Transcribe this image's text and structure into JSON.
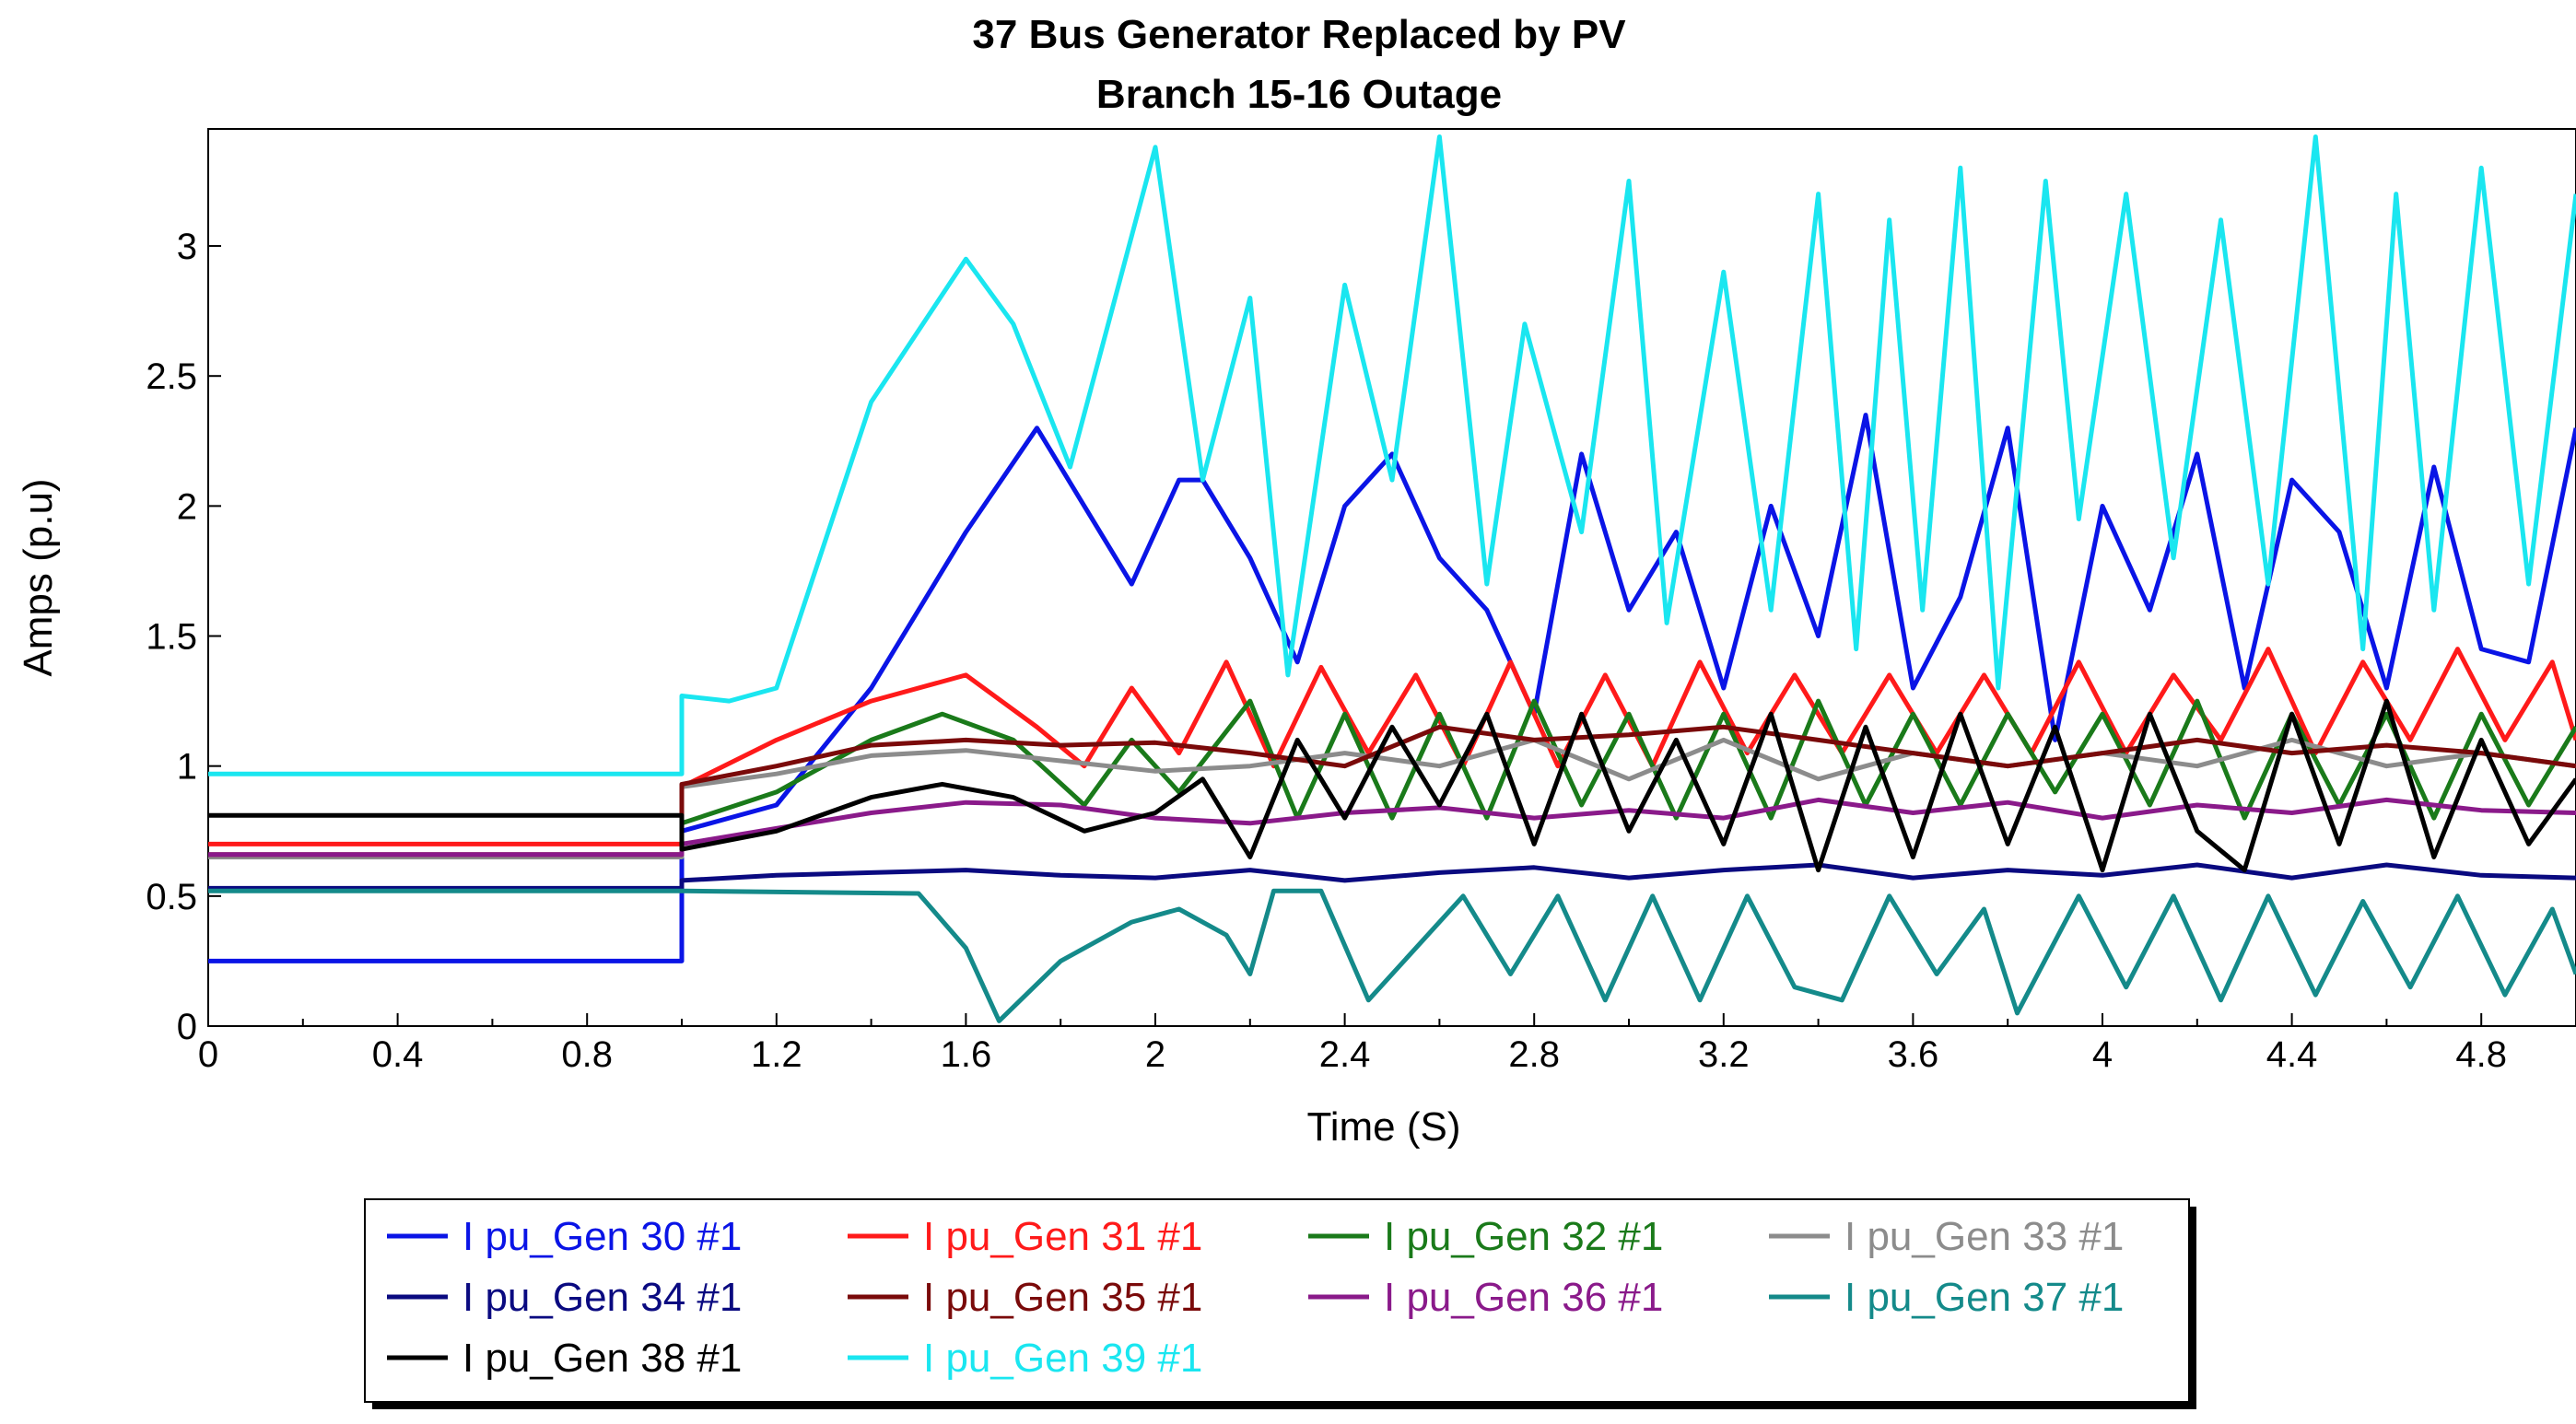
{
  "chart_data": {
    "type": "line",
    "title": "37 Bus Generator Replaced by PV",
    "subtitle": "Branch 15-16 Outage",
    "xlabel": "Time (S)",
    "ylabel": "Amps (p.u)",
    "xlim": [
      0,
      5.0
    ],
    "ylim": [
      0,
      3.45
    ],
    "xticks": [
      0,
      0.4,
      0.8,
      1.2,
      1.6,
      2,
      2.4,
      2.8,
      3.2,
      3.6,
      4,
      4.4,
      4.8
    ],
    "xtick_labels": [
      "0",
      "0.4",
      "0.8",
      "1.2",
      "1.6",
      "2",
      "2.4",
      "2.8",
      "3.2",
      "3.6",
      "4",
      "4.4",
      "4.8"
    ],
    "yticks": [
      0,
      0.5,
      1,
      1.5,
      2,
      2.5,
      3
    ],
    "ytick_labels": [
      "0",
      "0.5",
      "1",
      "1.5",
      "2",
      "2.5",
      "3"
    ],
    "grid": false,
    "legend_position": "bottom",
    "series": [
      {
        "name": "I pu_Gen 30 #1",
        "color": "#0a14e6",
        "x": [
          0,
          1.0,
          1.0,
          1.2,
          1.4,
          1.6,
          1.75,
          1.85,
          1.95,
          2.05,
          2.1,
          2.2,
          2.3,
          2.4,
          2.5,
          2.6,
          2.7,
          2.8,
          2.9,
          3.0,
          3.1,
          3.2,
          3.3,
          3.4,
          3.5,
          3.6,
          3.7,
          3.8,
          3.9,
          4.0,
          4.1,
          4.2,
          4.3,
          4.4,
          4.5,
          4.6,
          4.7,
          4.8,
          4.9,
          5.0
        ],
        "values": [
          0.25,
          0.25,
          0.75,
          0.85,
          1.3,
          1.9,
          2.3,
          2.0,
          1.7,
          2.1,
          2.1,
          1.8,
          1.4,
          2.0,
          2.2,
          1.8,
          1.6,
          1.2,
          2.2,
          1.6,
          1.9,
          1.3,
          2.0,
          1.5,
          2.35,
          1.3,
          1.65,
          2.3,
          1.1,
          2.0,
          1.6,
          2.2,
          1.3,
          2.1,
          1.9,
          1.3,
          2.15,
          1.45,
          1.4,
          2.3
        ]
      },
      {
        "name": "I pu_Gen 31 #1",
        "color": "#ff1a1a",
        "x": [
          0,
          1.0,
          1.0,
          1.2,
          1.4,
          1.6,
          1.75,
          1.85,
          1.95,
          2.05,
          2.15,
          2.25,
          2.35,
          2.45,
          2.55,
          2.65,
          2.75,
          2.85,
          2.95,
          3.05,
          3.15,
          3.25,
          3.35,
          3.45,
          3.55,
          3.65,
          3.75,
          3.85,
          3.95,
          4.05,
          4.15,
          4.25,
          4.35,
          4.45,
          4.55,
          4.65,
          4.75,
          4.85,
          4.95,
          5.0
        ],
        "values": [
          0.7,
          0.7,
          0.92,
          1.1,
          1.25,
          1.35,
          1.15,
          1.0,
          1.3,
          1.05,
          1.4,
          1.0,
          1.38,
          1.05,
          1.35,
          1.0,
          1.4,
          1.0,
          1.35,
          1.0,
          1.4,
          1.05,
          1.35,
          1.05,
          1.35,
          1.05,
          1.35,
          1.05,
          1.4,
          1.05,
          1.35,
          1.1,
          1.45,
          1.05,
          1.4,
          1.1,
          1.45,
          1.1,
          1.4,
          1.1
        ]
      },
      {
        "name": "I pu_Gen 32 #1",
        "color": "#1a7a1a",
        "x": [
          0,
          1.0,
          1.0,
          1.2,
          1.4,
          1.55,
          1.7,
          1.85,
          1.95,
          2.05,
          2.2,
          2.3,
          2.4,
          2.5,
          2.6,
          2.7,
          2.8,
          2.9,
          3.0,
          3.1,
          3.2,
          3.3,
          3.4,
          3.5,
          3.6,
          3.7,
          3.8,
          3.9,
          4.0,
          4.1,
          4.2,
          4.3,
          4.4,
          4.5,
          4.6,
          4.7,
          4.8,
          4.9,
          5.0
        ],
        "values": [
          0.65,
          0.65,
          0.78,
          0.9,
          1.1,
          1.2,
          1.1,
          0.85,
          1.1,
          0.9,
          1.25,
          0.8,
          1.2,
          0.8,
          1.2,
          0.8,
          1.25,
          0.85,
          1.2,
          0.8,
          1.2,
          0.8,
          1.25,
          0.85,
          1.2,
          0.85,
          1.2,
          0.9,
          1.2,
          0.85,
          1.25,
          0.8,
          1.2,
          0.85,
          1.2,
          0.8,
          1.2,
          0.85,
          1.15
        ]
      },
      {
        "name": "I pu_Gen 33 #1",
        "color": "#8c8c8c",
        "x": [
          0,
          1.0,
          1.0,
          1.2,
          1.4,
          1.6,
          1.8,
          2.0,
          2.2,
          2.4,
          2.6,
          2.8,
          3.0,
          3.2,
          3.4,
          3.6,
          3.8,
          4.0,
          4.2,
          4.4,
          4.6,
          4.8,
          5.0
        ],
        "values": [
          0.65,
          0.65,
          0.92,
          0.97,
          1.04,
          1.06,
          1.02,
          0.98,
          1.0,
          1.05,
          1.0,
          1.1,
          0.95,
          1.1,
          0.95,
          1.05,
          1.0,
          1.05,
          1.0,
          1.1,
          1.0,
          1.05,
          1.0
        ]
      },
      {
        "name": "I pu_Gen 34 #1",
        "color": "#0a0a80",
        "x": [
          0,
          1.0,
          1.0,
          1.2,
          1.4,
          1.6,
          1.8,
          2.0,
          2.2,
          2.4,
          2.6,
          2.8,
          3.0,
          3.2,
          3.4,
          3.6,
          3.8,
          4.0,
          4.2,
          4.4,
          4.6,
          4.8,
          5.0
        ],
        "values": [
          0.53,
          0.53,
          0.56,
          0.58,
          0.59,
          0.6,
          0.58,
          0.57,
          0.6,
          0.56,
          0.59,
          0.61,
          0.57,
          0.6,
          0.62,
          0.57,
          0.6,
          0.58,
          0.62,
          0.57,
          0.62,
          0.58,
          0.57
        ]
      },
      {
        "name": "I pu_Gen 35 #1",
        "color": "#7a0a0a",
        "x": [
          0,
          1.0,
          1.0,
          1.2,
          1.4,
          1.6,
          1.8,
          2.0,
          2.2,
          2.4,
          2.6,
          2.8,
          3.0,
          3.2,
          3.4,
          3.6,
          3.8,
          4.0,
          4.2,
          4.4,
          4.6,
          4.8,
          5.0
        ],
        "values": [
          0.66,
          0.66,
          0.93,
          1.0,
          1.08,
          1.1,
          1.08,
          1.09,
          1.05,
          1.0,
          1.15,
          1.1,
          1.12,
          1.15,
          1.1,
          1.05,
          1.0,
          1.05,
          1.1,
          1.05,
          1.08,
          1.05,
          1.0
        ]
      },
      {
        "name": "I pu_Gen 36 #1",
        "color": "#8a1a8a",
        "x": [
          0,
          1.0,
          1.0,
          1.2,
          1.4,
          1.6,
          1.8,
          2.0,
          2.2,
          2.4,
          2.6,
          2.8,
          3.0,
          3.2,
          3.4,
          3.6,
          3.8,
          4.0,
          4.2,
          4.4,
          4.6,
          4.8,
          5.0
        ],
        "values": [
          0.66,
          0.66,
          0.7,
          0.76,
          0.82,
          0.86,
          0.85,
          0.8,
          0.78,
          0.82,
          0.84,
          0.8,
          0.83,
          0.8,
          0.87,
          0.82,
          0.86,
          0.8,
          0.85,
          0.82,
          0.87,
          0.83,
          0.82
        ]
      },
      {
        "name": "I pu_Gen 37 #1",
        "color": "#148a8a",
        "x": [
          0,
          1.0,
          1.0,
          1.5,
          1.6,
          1.67,
          1.8,
          1.95,
          2.05,
          2.15,
          2.2,
          2.25,
          2.35,
          2.45,
          2.55,
          2.65,
          2.75,
          2.85,
          2.95,
          3.05,
          3.15,
          3.25,
          3.35,
          3.45,
          3.55,
          3.65,
          3.75,
          3.82,
          3.95,
          4.05,
          4.15,
          4.25,
          4.35,
          4.45,
          4.55,
          4.65,
          4.75,
          4.85,
          4.95,
          5.0
        ],
        "values": [
          0.52,
          0.52,
          0.52,
          0.51,
          0.3,
          0.02,
          0.25,
          0.4,
          0.45,
          0.35,
          0.2,
          0.52,
          0.52,
          0.1,
          0.3,
          0.5,
          0.2,
          0.5,
          0.1,
          0.5,
          0.1,
          0.5,
          0.15,
          0.1,
          0.5,
          0.2,
          0.45,
          0.05,
          0.5,
          0.15,
          0.5,
          0.1,
          0.5,
          0.12,
          0.48,
          0.15,
          0.5,
          0.12,
          0.45,
          0.2
        ]
      },
      {
        "name": "I pu_Gen 38 #1",
        "color": "#000000",
        "x": [
          0,
          1.0,
          1.0,
          1.2,
          1.4,
          1.55,
          1.7,
          1.85,
          2.0,
          2.1,
          2.2,
          2.3,
          2.4,
          2.5,
          2.6,
          2.7,
          2.8,
          2.9,
          3.0,
          3.1,
          3.2,
          3.3,
          3.4,
          3.5,
          3.6,
          3.7,
          3.8,
          3.9,
          4.0,
          4.1,
          4.2,
          4.3,
          4.4,
          4.5,
          4.6,
          4.7,
          4.8,
          4.9,
          5.0
        ],
        "values": [
          0.81,
          0.81,
          0.68,
          0.75,
          0.88,
          0.93,
          0.88,
          0.75,
          0.82,
          0.95,
          0.65,
          1.1,
          0.8,
          1.15,
          0.85,
          1.2,
          0.7,
          1.2,
          0.75,
          1.1,
          0.7,
          1.2,
          0.6,
          1.15,
          0.65,
          1.2,
          0.7,
          1.15,
          0.6,
          1.2,
          0.75,
          0.6,
          1.2,
          0.7,
          1.25,
          0.65,
          1.1,
          0.7,
          0.95
        ]
      },
      {
        "name": "I pu_Gen 39 #1",
        "color": "#1ae6f0",
        "x": [
          0,
          1.0,
          1.0,
          1.1,
          1.2,
          1.4,
          1.6,
          1.7,
          1.82,
          2.0,
          2.1,
          2.2,
          2.28,
          2.4,
          2.5,
          2.6,
          2.7,
          2.78,
          2.9,
          3.0,
          3.08,
          3.2,
          3.3,
          3.4,
          3.48,
          3.55,
          3.62,
          3.7,
          3.78,
          3.88,
          3.95,
          4.05,
          4.15,
          4.25,
          4.35,
          4.45,
          4.55,
          4.62,
          4.7,
          4.8,
          4.9,
          5.0
        ],
        "values": [
          0.97,
          0.97,
          1.27,
          1.25,
          1.3,
          2.4,
          2.95,
          2.7,
          2.15,
          3.38,
          2.1,
          2.8,
          1.35,
          2.85,
          2.1,
          3.42,
          1.7,
          2.7,
          1.9,
          3.25,
          1.55,
          2.9,
          1.6,
          3.2,
          1.45,
          3.1,
          1.6,
          3.3,
          1.3,
          3.25,
          1.95,
          3.2,
          1.8,
          3.1,
          1.7,
          3.42,
          1.45,
          3.2,
          1.6,
          3.3,
          1.7,
          3.2
        ]
      }
    ]
  }
}
